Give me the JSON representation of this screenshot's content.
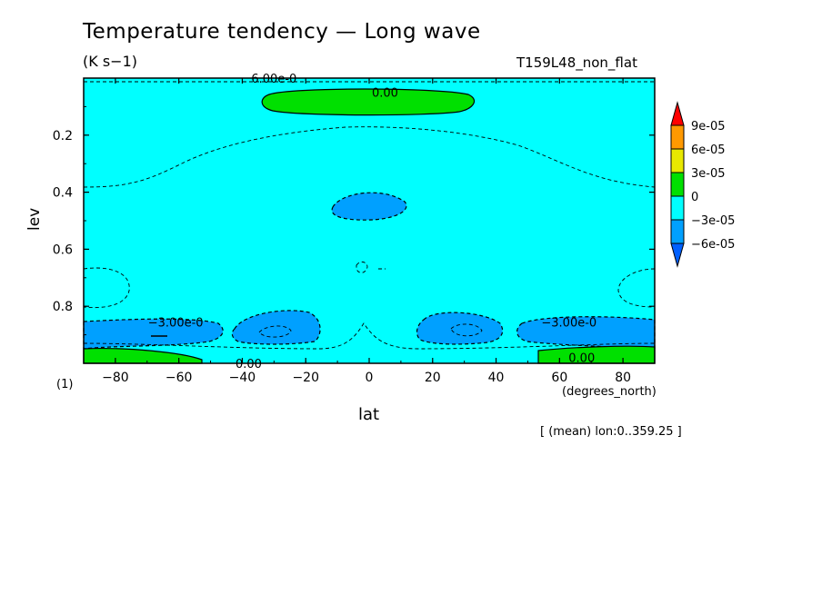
{
  "figure": {
    "title": "Temperature tendency — Long wave",
    "units": "(K s−1)",
    "experiment": "T159L48_non_flat",
    "note": "[ (mean) lon:0..359.25 ]",
    "panel_tag": "(1)"
  },
  "colors": {
    "background_field": "#00ffff",
    "neg_level_1": "#00a0ff",
    "zero_band": "#00e000",
    "pos_level_1": "#e8e800",
    "pos_level_2": "#ff9900",
    "pos_level_3": "#ff0000",
    "neg_level_2": "#0060ff"
  },
  "chart_data": {
    "type": "contour",
    "title": "Temperature tendency — Long wave",
    "xlabel": "lat",
    "xunit": "(degrees_north)",
    "ylabel": "lev",
    "xlim": [
      -90,
      90
    ],
    "ylim": [
      1.0,
      0.0
    ],
    "xticks": [
      -80,
      -60,
      -40,
      -20,
      0,
      20,
      40,
      60,
      80
    ],
    "xtick_labels": [
      "−80",
      "−60",
      "−40",
      "−20",
      "0",
      "20",
      "40",
      "60",
      "80"
    ],
    "yticks": [
      0.2,
      0.4,
      0.6,
      0.8
    ],
    "ytick_labels": [
      "0.2",
      "0.4",
      "0.6",
      "0.8"
    ],
    "colorbar": {
      "levels": [
        "9e-05",
        "6e-05",
        "3e-05",
        "0",
        "−3e-05",
        "−6e-05"
      ],
      "colors": [
        "#ff0000",
        "#ff9900",
        "#e8e800",
        "#00e000",
        "#00ffff",
        "#00a0ff",
        "#0060ff"
      ]
    },
    "contour_labels": [
      {
        "text": "6.00e-0",
        "lat": -30,
        "lev": 0.0
      },
      {
        "text": "0.00",
        "lat": 5,
        "lev": 0.05
      },
      {
        "text": "−3.00e-0",
        "lat": -61,
        "lev": 0.855
      },
      {
        "text": "−3.00e-0",
        "lat": 63,
        "lev": 0.855
      },
      {
        "text": "0.00",
        "lat": 67,
        "lev": 0.98
      },
      {
        "text": "0.00",
        "lat": -38,
        "lev": 1.0
      }
    ],
    "regions": [
      {
        "name": "positive-upper-core",
        "range": "0 to 3e-05",
        "lat_range": [
          -33,
          33
        ],
        "lev_range": [
          0.04,
          0.12
        ]
      },
      {
        "name": "negative-mid-core",
        "range": "-6e-05 to -3e-05",
        "lat_range": [
          -12,
          12
        ],
        "lev_range": [
          0.4,
          0.49
        ]
      },
      {
        "name": "negative-lower-sh-high",
        "range": "-6e-05 to -3e-05",
        "lat_range": [
          -90,
          -48
        ],
        "lev_range": [
          0.84,
          0.93
        ]
      },
      {
        "name": "negative-lower-sh-sub",
        "range": "-6e-05 to -3e-05",
        "lat_range": [
          -42,
          -15
        ],
        "lev_range": [
          0.82,
          0.94
        ]
      },
      {
        "name": "negative-lower-nh-sub",
        "range": "-6e-05 to -3e-05",
        "lat_range": [
          15,
          42
        ],
        "lev_range": [
          0.82,
          0.94
        ]
      },
      {
        "name": "negative-lower-nh-high",
        "range": "-6e-05 to -3e-05",
        "lat_range": [
          47,
          90
        ],
        "lev_range": [
          0.84,
          0.93
        ]
      },
      {
        "name": "positive-surface-sh",
        "range": "0 to 3e-05",
        "lat_range": [
          -90,
          -53
        ],
        "lev_range": [
          0.95,
          1.0
        ]
      },
      {
        "name": "positive-surface-nh",
        "range": "0 to 3e-05",
        "lat_range": [
          53,
          90
        ],
        "lev_range": [
          0.95,
          1.0
        ]
      }
    ]
  }
}
